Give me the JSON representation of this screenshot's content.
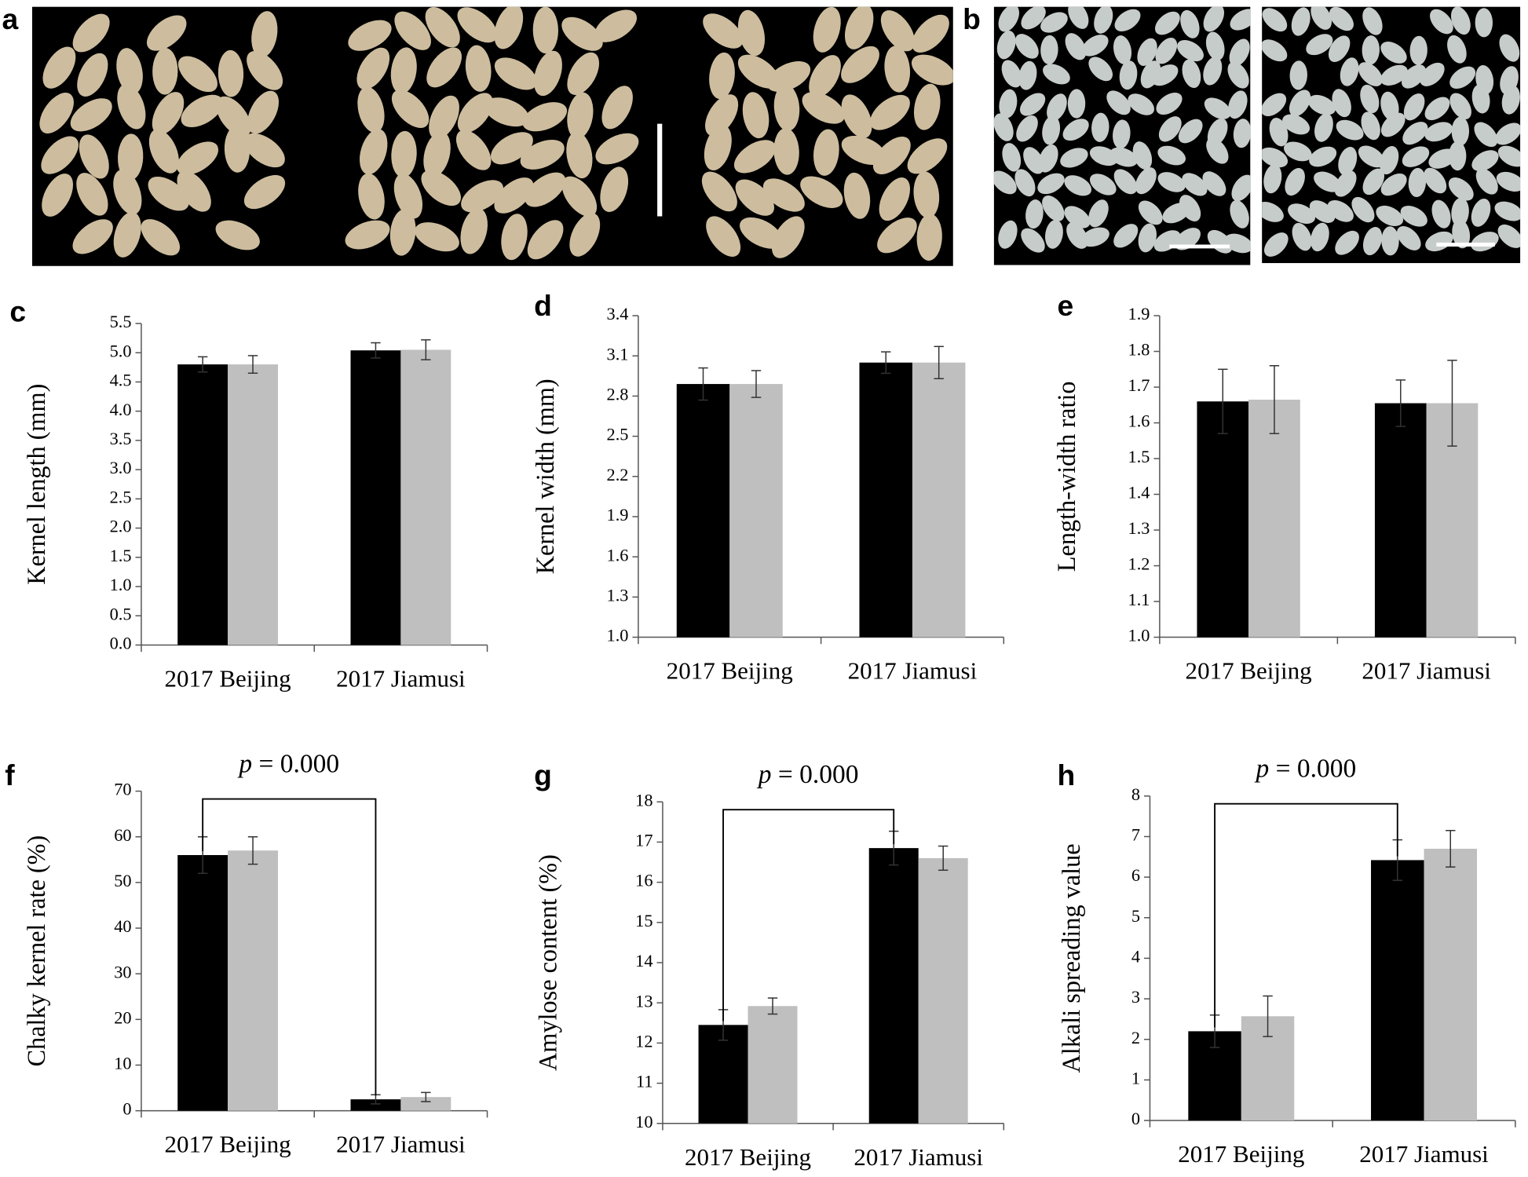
{
  "images": [
    {
      "panel": "a"
    },
    {
      "panel": "b"
    }
  ],
  "chart_data": [
    {
      "type": "bar",
      "panel": "c",
      "ylabel": "Kernel length (mm)",
      "categories": [
        "2017 Beijing",
        "2017 Jiamusi"
      ],
      "series": [
        {
          "color": "#000000",
          "values": [
            4.8,
            5.04
          ],
          "errors": [
            0.13,
            0.13
          ]
        },
        {
          "color": "#bfbfbf",
          "values": [
            4.8,
            5.05
          ],
          "errors": [
            0.15,
            0.17
          ]
        }
      ],
      "ylim": [
        0,
        5.5
      ],
      "yticks": [
        {
          "value": 0,
          "label": "0.0"
        },
        0.5,
        {
          "value": 1,
          "label": "1.0"
        },
        1.5,
        {
          "value": 2,
          "label": "2.0"
        },
        2.5,
        {
          "value": 3,
          "label": "3.0"
        },
        3.5,
        {
          "value": 4,
          "label": "4.0"
        },
        4.5,
        {
          "value": 5,
          "label": "5.0"
        },
        5.5
      ]
    },
    {
      "type": "bar",
      "panel": "d",
      "ylabel": "Kernel width (mm)",
      "categories": [
        "2017 Beijing",
        "2017 Jiamusi"
      ],
      "series": [
        {
          "color": "#000000",
          "values": [
            2.89,
            3.05
          ],
          "errors": [
            0.12,
            0.08
          ]
        },
        {
          "color": "#bfbfbf",
          "values": [
            2.89,
            3.05
          ],
          "errors": [
            0.1,
            0.12
          ]
        }
      ],
      "ylim": [
        1,
        3.4
      ],
      "yticks": [
        {
          "value": 1,
          "label": "1.0"
        },
        1.3,
        1.6,
        1.9,
        2.2,
        2.5,
        2.8,
        3.1,
        3.4
      ]
    },
    {
      "type": "bar",
      "panel": "e",
      "ylabel": "Length-width ratio",
      "categories": [
        "2017 Beijing",
        "2017 Jiamusi"
      ],
      "series": [
        {
          "color": "#000000",
          "values": [
            1.66,
            1.655
          ],
          "errors": [
            0.09,
            0.065
          ]
        },
        {
          "color": "#bfbfbf",
          "values": [
            1.665,
            1.655
          ],
          "errors": [
            0.095,
            0.12
          ]
        }
      ],
      "ylim": [
        1,
        1.9
      ],
      "yticks": [
        {
          "value": 1,
          "label": "1.0"
        },
        1.1,
        1.2,
        1.3,
        1.4,
        1.5,
        1.6,
        1.7,
        1.8,
        1.9
      ]
    },
    {
      "type": "bar",
      "panel": "f",
      "ylabel": "Chalky kernel rate (%)",
      "categories": [
        "2017 Beijing",
        "2017 Jiamusi"
      ],
      "series": [
        {
          "color": "#000000",
          "values": [
            56,
            2.5
          ],
          "errors": [
            4,
            1
          ]
        },
        {
          "color": "#bfbfbf",
          "values": [
            57,
            3
          ],
          "errors": [
            3,
            1
          ]
        }
      ],
      "ylim": [
        0,
        70
      ],
      "yticks": [
        0,
        10,
        20,
        30,
        40,
        50,
        60,
        70
      ],
      "annotation": {
        "italic": "p",
        "text": " = 0.000"
      }
    },
    {
      "type": "bar",
      "panel": "g",
      "ylabel": "Amylose content  (%)",
      "categories": [
        "2017 Beijing",
        "2017 Jiamusi"
      ],
      "series": [
        {
          "color": "#000000",
          "values": [
            12.45,
            16.85
          ],
          "errors": [
            0.38,
            0.42
          ]
        },
        {
          "color": "#bfbfbf",
          "values": [
            12.92,
            16.6
          ],
          "errors": [
            0.2,
            0.3
          ]
        }
      ],
      "ylim": [
        10,
        18
      ],
      "yticks": [
        10,
        11,
        12,
        13,
        14,
        15,
        16,
        17,
        18
      ],
      "annotation": {
        "italic": "p",
        "text": " = 0.000"
      }
    },
    {
      "type": "bar",
      "panel": "h",
      "ylabel": "Alkali spreading value",
      "categories": [
        "2017 Beijing",
        "2017 Jiamusi"
      ],
      "series": [
        {
          "color": "#000000",
          "values": [
            2.2,
            6.42
          ],
          "errors": [
            0.4,
            0.5
          ]
        },
        {
          "color": "#bfbfbf",
          "values": [
            2.57,
            6.7
          ],
          "errors": [
            0.5,
            0.45
          ]
        }
      ],
      "ylim": [
        0,
        8
      ],
      "yticks": [
        0,
        1,
        2,
        3,
        4,
        5,
        6,
        7,
        8
      ],
      "annotation": {
        "italic": "p",
        "text": " = 0.000"
      }
    }
  ]
}
